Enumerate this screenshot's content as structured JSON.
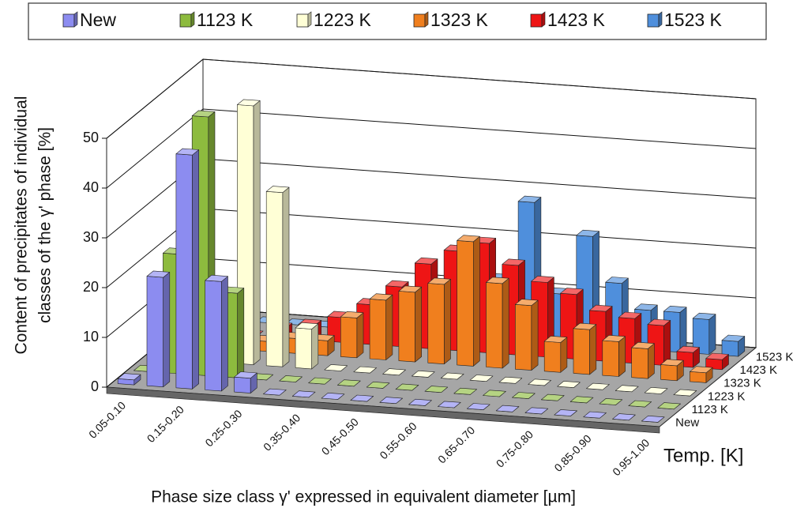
{
  "chart_data": {
    "type": "bar3d",
    "y_label": [
      "Content of precipitates of individual",
      "classes of the γ' phase [%]"
    ],
    "x_label": "Phase size class γ' expressed in equivalent diameter [µm]",
    "z_label": "Temp. [K]",
    "categories": [
      "0.05-0.10",
      null,
      "0.15-0.20",
      null,
      "0.25-0.30",
      null,
      "0.35-0.40",
      null,
      "0.45-0.50",
      null,
      "0.55-0.60",
      null,
      "0.65-0.70",
      null,
      "0.75-0.80",
      null,
      "0.85-0.90",
      null,
      "0.95-1.00"
    ],
    "series": [
      {
        "name": "New",
        "color": "#8c8cf0",
        "values": [
          1,
          22,
          47,
          22,
          3,
          0,
          0,
          0,
          0,
          0,
          0,
          0,
          0,
          0,
          0,
          0,
          0,
          0,
          0
        ]
      },
      {
        "name": "1123 K",
        "color": "#8dbb3e",
        "values": [
          0,
          24,
          52,
          17,
          0,
          0,
          0,
          0,
          0,
          0,
          0,
          0,
          0,
          0,
          0,
          0,
          0,
          0,
          0
        ]
      },
      {
        "name": "1223 K",
        "color": "#ffffd6",
        "values": [
          0,
          0,
          0,
          52,
          35,
          8,
          0,
          0,
          0,
          0,
          0,
          0,
          0,
          0,
          0,
          0,
          0,
          0,
          0
        ]
      },
      {
        "name": "1323 K",
        "color": "#f07f1e",
        "values": [
          0,
          0,
          0,
          2,
          3,
          3,
          8,
          12,
          14,
          16,
          25,
          17,
          13,
          6,
          9,
          7,
          6,
          3,
          2
        ]
      },
      {
        "name": "1423 K",
        "color": "#ee1515",
        "values": [
          0,
          0,
          0,
          2,
          3,
          5,
          8,
          12,
          17,
          20,
          22,
          18,
          15,
          13,
          10,
          9,
          8,
          3,
          2
        ]
      },
      {
        "name": "1523 K",
        "color": "#4f8fdc",
        "values": [
          0,
          0,
          0,
          0,
          0,
          2,
          2,
          4,
          4,
          8,
          12,
          28,
          10,
          22,
          13,
          8,
          8,
          7,
          3
        ]
      }
    ],
    "ylim": [
      0,
      50
    ],
    "yticks": [
      0,
      10,
      20,
      30,
      40,
      50
    ],
    "grid": true
  }
}
